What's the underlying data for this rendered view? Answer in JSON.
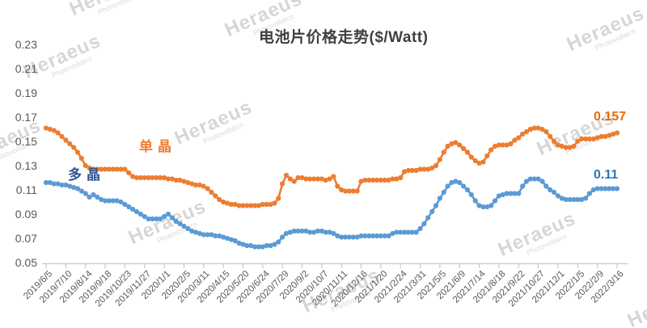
{
  "title": "电池片价格走势($/Watt)",
  "watermark": {
    "brand": "Heraeus",
    "sub": "Photovoltaics"
  },
  "chart_data": {
    "type": "line",
    "title": "电池片价格走势($/Watt)",
    "x_interval": "weekly",
    "x_start": "2019/6/5",
    "x_end": "2022/3/16",
    "x_tick_labels": [
      "2019/6/5",
      "2019/7/10",
      "2019/8/14",
      "2019/9/18",
      "2019/10/23",
      "2019/11/27",
      "2020/1/1",
      "2020/2/5",
      "2020/3/11",
      "2020/4/15",
      "2020/5/20",
      "2020/6/24",
      "2020/7/29",
      "2020/9/2",
      "2020/10/7",
      "2020/11/11",
      "2020/12/16",
      "2021/1/20",
      "2021/2/24",
      "2021/3/31",
      "2021/5/5",
      "2021/6/9",
      "2021/7/14",
      "2021/8/18",
      "2021/9/22",
      "2021/10/27",
      "2021/12/1",
      "2022/1/5",
      "2022/2/9",
      "2022/3/16"
    ],
    "x_ticks_per_label": 5,
    "y_tick_labels": [
      "0.23",
      "0.21",
      "0.19",
      "0.17",
      "0.15",
      "0.13",
      "0.11",
      "0.09",
      "0.07",
      "0.05"
    ],
    "ylim": [
      0.05,
      0.23
    ],
    "grid": false,
    "axis_color": "#bfbfbf",
    "tick_label_color": "#595959",
    "series": [
      {
        "name": "单晶",
        "color": "#ED7D31",
        "label_color": "#ED7D31",
        "end_label": "0.157",
        "end_label_color": "#E46C0A",
        "values": [
          0.161,
          0.16,
          0.159,
          0.157,
          0.154,
          0.151,
          0.148,
          0.145,
          0.141,
          0.136,
          0.13,
          0.128,
          0.127,
          0.127,
          0.127,
          0.127,
          0.127,
          0.127,
          0.127,
          0.127,
          0.127,
          0.124,
          0.121,
          0.12,
          0.12,
          0.12,
          0.12,
          0.12,
          0.12,
          0.12,
          0.12,
          0.119,
          0.119,
          0.118,
          0.118,
          0.117,
          0.116,
          0.115,
          0.114,
          0.114,
          0.113,
          0.111,
          0.108,
          0.105,
          0.102,
          0.1,
          0.099,
          0.098,
          0.098,
          0.097,
          0.097,
          0.097,
          0.097,
          0.097,
          0.097,
          0.098,
          0.098,
          0.098,
          0.099,
          0.103,
          0.115,
          0.122,
          0.119,
          0.117,
          0.12,
          0.12,
          0.119,
          0.119,
          0.119,
          0.119,
          0.119,
          0.118,
          0.119,
          0.121,
          0.113,
          0.11,
          0.109,
          0.109,
          0.109,
          0.109,
          0.117,
          0.118,
          0.118,
          0.118,
          0.118,
          0.118,
          0.118,
          0.118,
          0.119,
          0.119,
          0.12,
          0.125,
          0.126,
          0.126,
          0.126,
          0.127,
          0.127,
          0.127,
          0.128,
          0.13,
          0.135,
          0.141,
          0.146,
          0.148,
          0.149,
          0.147,
          0.144,
          0.141,
          0.137,
          0.134,
          0.132,
          0.133,
          0.138,
          0.143,
          0.146,
          0.147,
          0.147,
          0.147,
          0.148,
          0.151,
          0.153,
          0.156,
          0.158,
          0.16,
          0.161,
          0.161,
          0.16,
          0.158,
          0.154,
          0.15,
          0.147,
          0.146,
          0.145,
          0.145,
          0.146,
          0.15,
          0.152,
          0.152,
          0.152,
          0.152,
          0.153,
          0.154,
          0.154,
          0.155,
          0.156,
          0.157
        ]
      },
      {
        "name": "多晶",
        "color": "#5B9BD5",
        "label_color": "#2F5597",
        "end_label": "0.11",
        "end_label_color": "#2E75B6",
        "values": [
          0.116,
          0.116,
          0.115,
          0.115,
          0.114,
          0.114,
          0.113,
          0.112,
          0.111,
          0.109,
          0.107,
          0.104,
          0.106,
          0.104,
          0.102,
          0.101,
          0.101,
          0.101,
          0.101,
          0.1,
          0.098,
          0.096,
          0.094,
          0.092,
          0.09,
          0.088,
          0.086,
          0.086,
          0.086,
          0.086,
          0.088,
          0.09,
          0.087,
          0.084,
          0.082,
          0.08,
          0.078,
          0.076,
          0.075,
          0.074,
          0.073,
          0.073,
          0.073,
          0.072,
          0.072,
          0.071,
          0.07,
          0.069,
          0.068,
          0.066,
          0.065,
          0.064,
          0.064,
          0.063,
          0.063,
          0.063,
          0.064,
          0.064,
          0.065,
          0.067,
          0.071,
          0.074,
          0.075,
          0.076,
          0.076,
          0.076,
          0.076,
          0.075,
          0.075,
          0.076,
          0.076,
          0.075,
          0.075,
          0.074,
          0.072,
          0.071,
          0.071,
          0.071,
          0.071,
          0.071,
          0.072,
          0.072,
          0.072,
          0.072,
          0.072,
          0.072,
          0.072,
          0.072,
          0.074,
          0.075,
          0.075,
          0.075,
          0.075,
          0.075,
          0.075,
          0.078,
          0.082,
          0.087,
          0.092,
          0.097,
          0.103,
          0.108,
          0.113,
          0.116,
          0.117,
          0.116,
          0.113,
          0.11,
          0.106,
          0.101,
          0.097,
          0.096,
          0.096,
          0.097,
          0.101,
          0.105,
          0.106,
          0.107,
          0.107,
          0.107,
          0.107,
          0.113,
          0.117,
          0.119,
          0.119,
          0.119,
          0.117,
          0.113,
          0.11,
          0.108,
          0.105,
          0.103,
          0.102,
          0.102,
          0.102,
          0.102,
          0.102,
          0.103,
          0.107,
          0.11,
          0.111,
          0.111,
          0.111,
          0.111,
          0.111,
          0.111
        ]
      }
    ]
  }
}
